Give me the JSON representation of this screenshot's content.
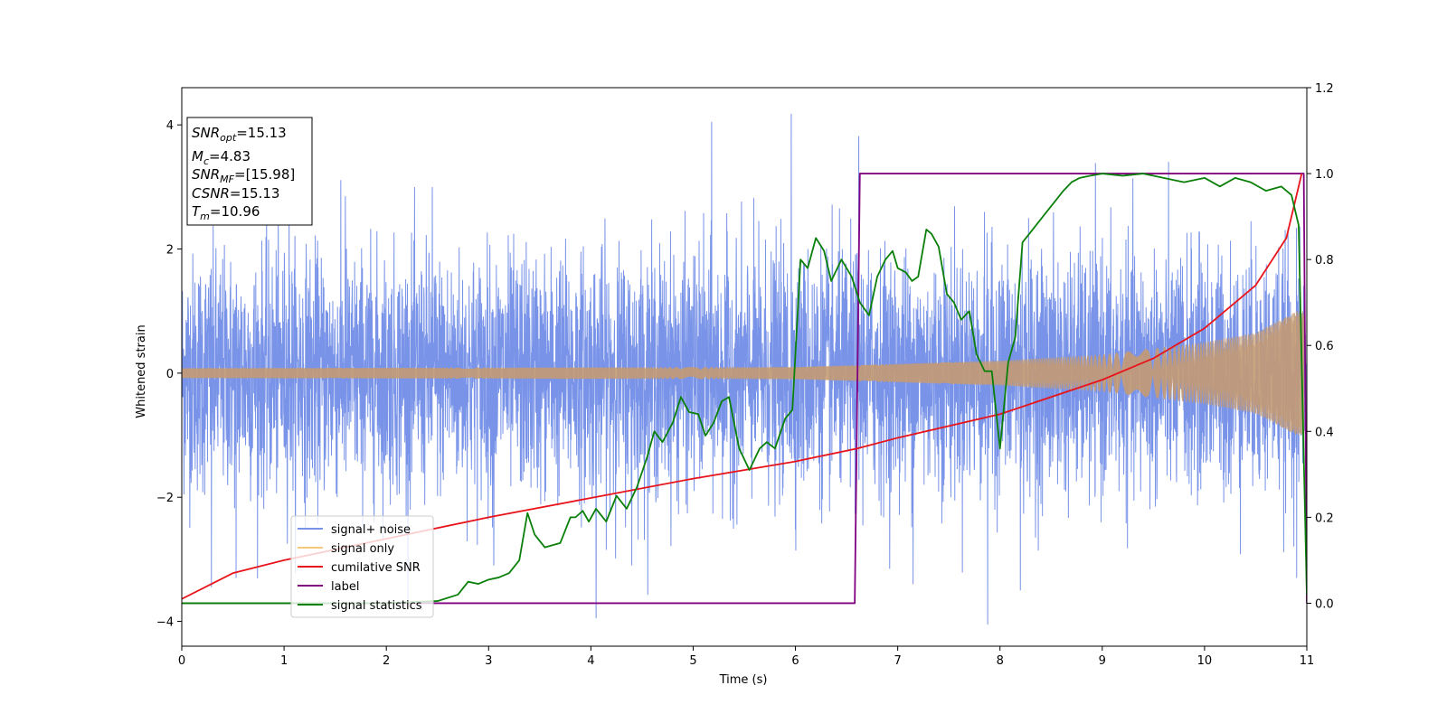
{
  "chart_data": {
    "type": "line",
    "xlabel": "Time (s)",
    "ylabel": "Whitened strain",
    "xlim": [
      0,
      11
    ],
    "ylim": [
      -4.4,
      4.6
    ],
    "ylim_right": [
      -0.1,
      1.2
    ],
    "x_ticks": [
      "0",
      "1",
      "2",
      "3",
      "4",
      "5",
      "6",
      "7",
      "8",
      "9",
      "10",
      "11"
    ],
    "y_ticks": [
      "−4",
      "−2",
      "0",
      "2",
      "4"
    ],
    "y_ticks_right": [
      "0.0",
      "0.2",
      "0.4",
      "0.6",
      "0.8",
      "1.0",
      "1.2"
    ],
    "grid": false,
    "legend_position": "lower-left",
    "annotation": {
      "lines": [
        {
          "sym": "SNR",
          "sub": "opt",
          "value": "=15.13"
        },
        {
          "sym": "M",
          "sub": "c",
          "value": "=4.83"
        },
        {
          "sym": "SNR",
          "sub": "MF",
          "value": "=[15.98]"
        },
        {
          "sym": "CSNR",
          "sub": "",
          "value": "=15.13"
        },
        {
          "sym": "T",
          "sub": "m",
          "value": "=10.96"
        }
      ]
    },
    "series": [
      {
        "name": "signal+ noise",
        "color": "#7893e8",
        "axis": "left",
        "description_values": {
          "mean": 0,
          "amplitude_range": [
            -4.05,
            4.18
          ],
          "noise_std": 0.95
        },
        "spikes": [
          [
            0.29,
            -3.45
          ],
          [
            0.53,
            -3.3
          ],
          [
            1.05,
            2.9
          ],
          [
            1.6,
            2.85
          ],
          [
            2.45,
            3.0
          ],
          [
            3.05,
            -3.1
          ],
          [
            4.05,
            -3.95
          ],
          [
            4.4,
            -3.1
          ],
          [
            5.18,
            4.05
          ],
          [
            5.96,
            4.18
          ],
          [
            6.62,
            3.82
          ],
          [
            7.15,
            -3.4
          ],
          [
            7.88,
            -4.05
          ],
          [
            8.2,
            -3.5
          ],
          [
            10.9,
            -3.3
          ]
        ]
      },
      {
        "name": "signal only",
        "color": "#f5c97a",
        "axis": "left",
        "envelope": [
          [
            0,
            0.08
          ],
          [
            6,
            0.1
          ],
          [
            8,
            0.2
          ],
          [
            9,
            0.3
          ],
          [
            10,
            0.5
          ],
          [
            10.5,
            0.65
          ],
          [
            10.9,
            1.0
          ]
        ]
      },
      {
        "name": "cumilative SNR",
        "color": "#e8141b",
        "axis": "right",
        "x": [
          0,
          0.5,
          1,
          2,
          3,
          4,
          5,
          6,
          6.6,
          7,
          8,
          9,
          9.5,
          10,
          10.5,
          10.8,
          10.95
        ],
        "y": [
          0.01,
          0.07,
          0.1,
          0.15,
          0.2,
          0.245,
          0.29,
          0.33,
          0.36,
          0.385,
          0.44,
          0.52,
          0.57,
          0.64,
          0.74,
          0.85,
          1.0
        ]
      },
      {
        "name": "label",
        "color": "#800080",
        "axis": "right",
        "x": [
          0,
          6.58,
          6.63,
          10.97,
          11.0
        ],
        "y": [
          0.0,
          0.0,
          1.0,
          1.0,
          0.0
        ]
      },
      {
        "name": "signal statistics",
        "color": "#0a800a",
        "axis": "right",
        "x": [
          0,
          2.0,
          2.5,
          2.7,
          2.8,
          2.9,
          3.0,
          3.1,
          3.2,
          3.3,
          3.38,
          3.45,
          3.55,
          3.7,
          3.8,
          3.85,
          3.92,
          3.98,
          4.05,
          4.15,
          4.25,
          4.35,
          4.45,
          4.55,
          4.62,
          4.7,
          4.8,
          4.88,
          4.96,
          5.05,
          5.12,
          5.2,
          5.28,
          5.35,
          5.45,
          5.55,
          5.65,
          5.72,
          5.8,
          5.9,
          5.97,
          6.05,
          6.12,
          6.2,
          6.28,
          6.35,
          6.45,
          6.55,
          6.63,
          6.72,
          6.8,
          6.88,
          6.95,
          7.0,
          7.08,
          7.14,
          7.2,
          7.28,
          7.33,
          7.4,
          7.48,
          7.55,
          7.62,
          7.7,
          7.77,
          7.85,
          7.92,
          8.0,
          8.08,
          8.15,
          8.22,
          8.32,
          8.42,
          8.52,
          8.62,
          8.7,
          8.78,
          8.88,
          9.0,
          9.2,
          9.4,
          9.6,
          9.8,
          10.0,
          10.15,
          10.3,
          10.45,
          10.6,
          10.75,
          10.85,
          10.92,
          11.0
        ],
        "y": [
          0.0,
          0.0,
          0.005,
          0.02,
          0.05,
          0.045,
          0.055,
          0.06,
          0.07,
          0.1,
          0.21,
          0.16,
          0.13,
          0.14,
          0.2,
          0.2,
          0.215,
          0.19,
          0.22,
          0.19,
          0.25,
          0.22,
          0.27,
          0.34,
          0.4,
          0.375,
          0.42,
          0.48,
          0.445,
          0.44,
          0.39,
          0.42,
          0.47,
          0.48,
          0.36,
          0.31,
          0.36,
          0.375,
          0.36,
          0.43,
          0.45,
          0.8,
          0.78,
          0.85,
          0.82,
          0.75,
          0.8,
          0.76,
          0.7,
          0.67,
          0.76,
          0.8,
          0.82,
          0.78,
          0.77,
          0.75,
          0.76,
          0.87,
          0.86,
          0.83,
          0.72,
          0.7,
          0.66,
          0.68,
          0.58,
          0.54,
          0.54,
          0.36,
          0.56,
          0.62,
          0.84,
          0.87,
          0.9,
          0.93,
          0.96,
          0.98,
          0.99,
          0.995,
          1.0,
          0.995,
          1.0,
          0.99,
          0.98,
          0.99,
          0.97,
          0.99,
          0.98,
          0.96,
          0.97,
          0.95,
          0.88,
          0.02
        ]
      }
    ]
  }
}
